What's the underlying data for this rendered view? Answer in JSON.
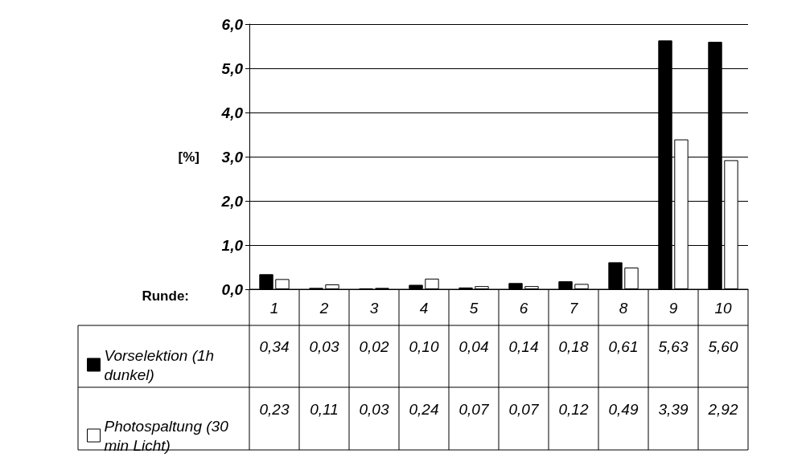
{
  "chart_data": {
    "type": "bar",
    "xlabel": "Runde:",
    "ylabel": "[%]",
    "categories": [
      "1",
      "2",
      "3",
      "4",
      "5",
      "6",
      "7",
      "8",
      "9",
      "10"
    ],
    "series": [
      {
        "name": "Vorselektion (1h dunkel)",
        "color": "#000000",
        "values": [
          0.34,
          0.03,
          0.02,
          0.1,
          0.04,
          0.14,
          0.18,
          0.61,
          5.63,
          5.6
        ],
        "value_labels": [
          "0,34",
          "0,03",
          "0,02",
          "0,10",
          "0,04",
          "0,14",
          "0,18",
          "0,61",
          "5,63",
          "5,60"
        ]
      },
      {
        "name": "Photospaltung (30 min Licht)",
        "color": "#ffffff",
        "values": [
          0.23,
          0.11,
          0.03,
          0.24,
          0.07,
          0.07,
          0.12,
          0.49,
          3.39,
          2.92
        ],
        "value_labels": [
          "0,23",
          "0,11",
          "0,03",
          "0,24",
          "0,07",
          "0,07",
          "0,12",
          "0,49",
          "3,39",
          "2,92"
        ]
      }
    ],
    "ylim": [
      0,
      6
    ],
    "yticks": [
      {
        "value": 0,
        "label": "0,0"
      },
      {
        "value": 1,
        "label": "1,0"
      },
      {
        "value": 2,
        "label": "2,0"
      },
      {
        "value": 3,
        "label": "3,0"
      },
      {
        "value": 4,
        "label": "4,0"
      },
      {
        "value": 5,
        "label": "5,0"
      },
      {
        "value": 6,
        "label": "6,0"
      }
    ],
    "grid": "y",
    "legend": "bottom left"
  }
}
